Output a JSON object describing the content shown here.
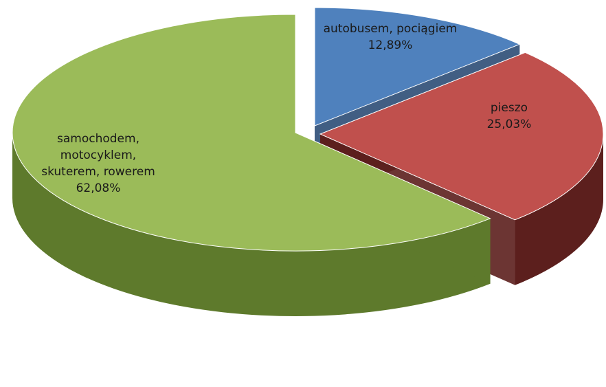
{
  "chart_data": {
    "type": "pie",
    "style": "3d-exploded",
    "slices": [
      {
        "label_lines": [
          "autobusem, pociągiem"
        ],
        "value": 12.89,
        "value_label": "12,89%",
        "color": "#4F81BD",
        "side_color": "#2C4D75",
        "exploded": true
      },
      {
        "label_lines": [
          "pieszo"
        ],
        "value": 25.03,
        "value_label": "25,03%",
        "color": "#C0504D",
        "side_color": "#5C1F1D",
        "exploded": true
      },
      {
        "label_lines": [
          "samochodem,",
          "motocyklem,",
          "skuterem, rowerem"
        ],
        "value": 62.08,
        "value_label": "62,08%",
        "color": "#9BBB59",
        "side_color": "#5E7A2C",
        "exploded": false
      }
    ],
    "legend": "none",
    "data_labels": "inside"
  }
}
